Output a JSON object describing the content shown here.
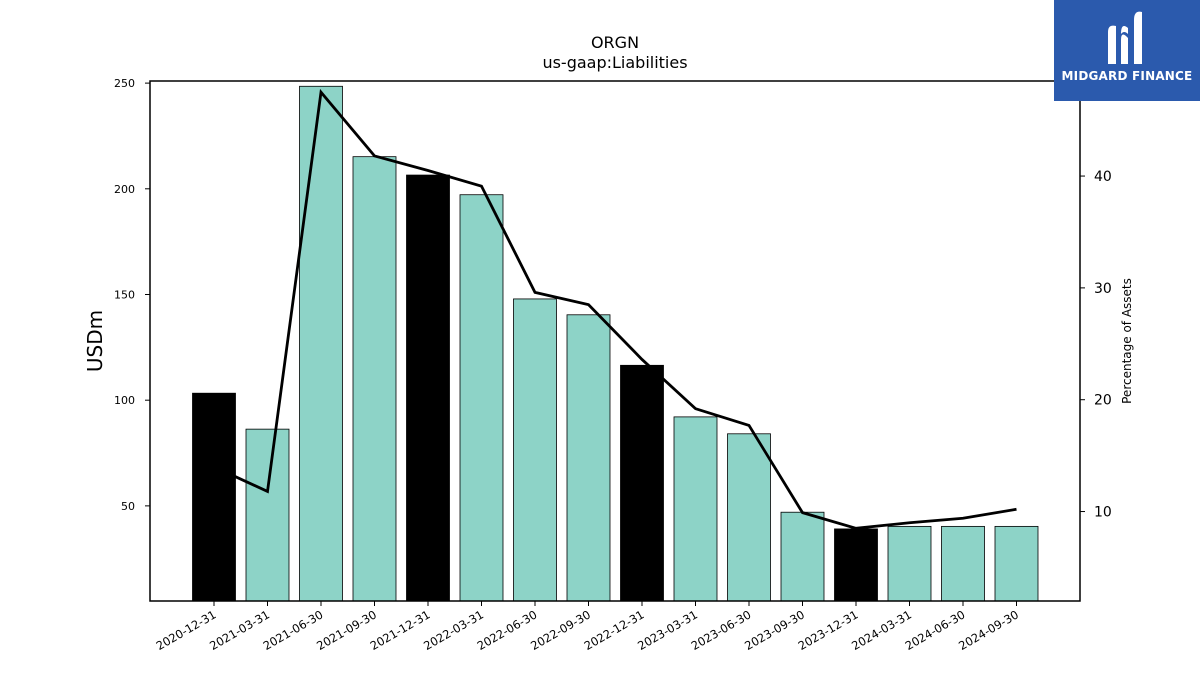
{
  "chart_data": {
    "type": "bar",
    "title": "ORGN",
    "subtitle": "us-gaap:Liabilities",
    "ylabel": "USDm",
    "y2label": "Percentage of Assets",
    "ylim": [
      5,
      251
    ],
    "y2lim": [
      2,
      48.5
    ],
    "yticks": [
      50,
      100,
      150,
      200,
      250
    ],
    "y2ticks": [
      10,
      20,
      30,
      40
    ],
    "categories": [
      "2020-12-31",
      "2021-03-31",
      "2021-06-30",
      "2021-09-30",
      "2021-12-31",
      "2022-03-31",
      "2022-06-30",
      "2022-09-30",
      "2022-12-31",
      "2023-03-31",
      "2023-06-30",
      "2023-09-30",
      "2023-12-31",
      "2024-03-31",
      "2024-06-30",
      "2024-09-30"
    ],
    "series": [
      {
        "type": "bar",
        "values": [
          103.3,
          86.3,
          248.5,
          215.2,
          206.5,
          197.2,
          147.9,
          140.4,
          116.5,
          92.1,
          84.1,
          47.0,
          39.1,
          40.3,
          40.3,
          40.3
        ],
        "colors": [
          "#000000",
          "#8dd3c7",
          "#8dd3c7",
          "#8dd3c7",
          "#000000",
          "#8dd3c7",
          "#8dd3c7",
          "#8dd3c7",
          "#000000",
          "#8dd3c7",
          "#8dd3c7",
          "#8dd3c7",
          "#000000",
          "#8dd3c7",
          "#8dd3c7",
          "#8dd3c7"
        ]
      },
      {
        "type": "line",
        "axis": "right",
        "values": [
          14.0,
          11.8,
          47.5,
          41.8,
          40.5,
          39.1,
          29.6,
          28.5,
          23.6,
          19.2,
          17.7,
          9.9,
          8.5,
          9.0,
          9.4,
          10.2
        ],
        "color": "#000000"
      }
    ]
  },
  "logo": {
    "text": "MIDGARD FINANCE",
    "icon": "midgard-logo-icon",
    "color": "#2b5aad"
  }
}
